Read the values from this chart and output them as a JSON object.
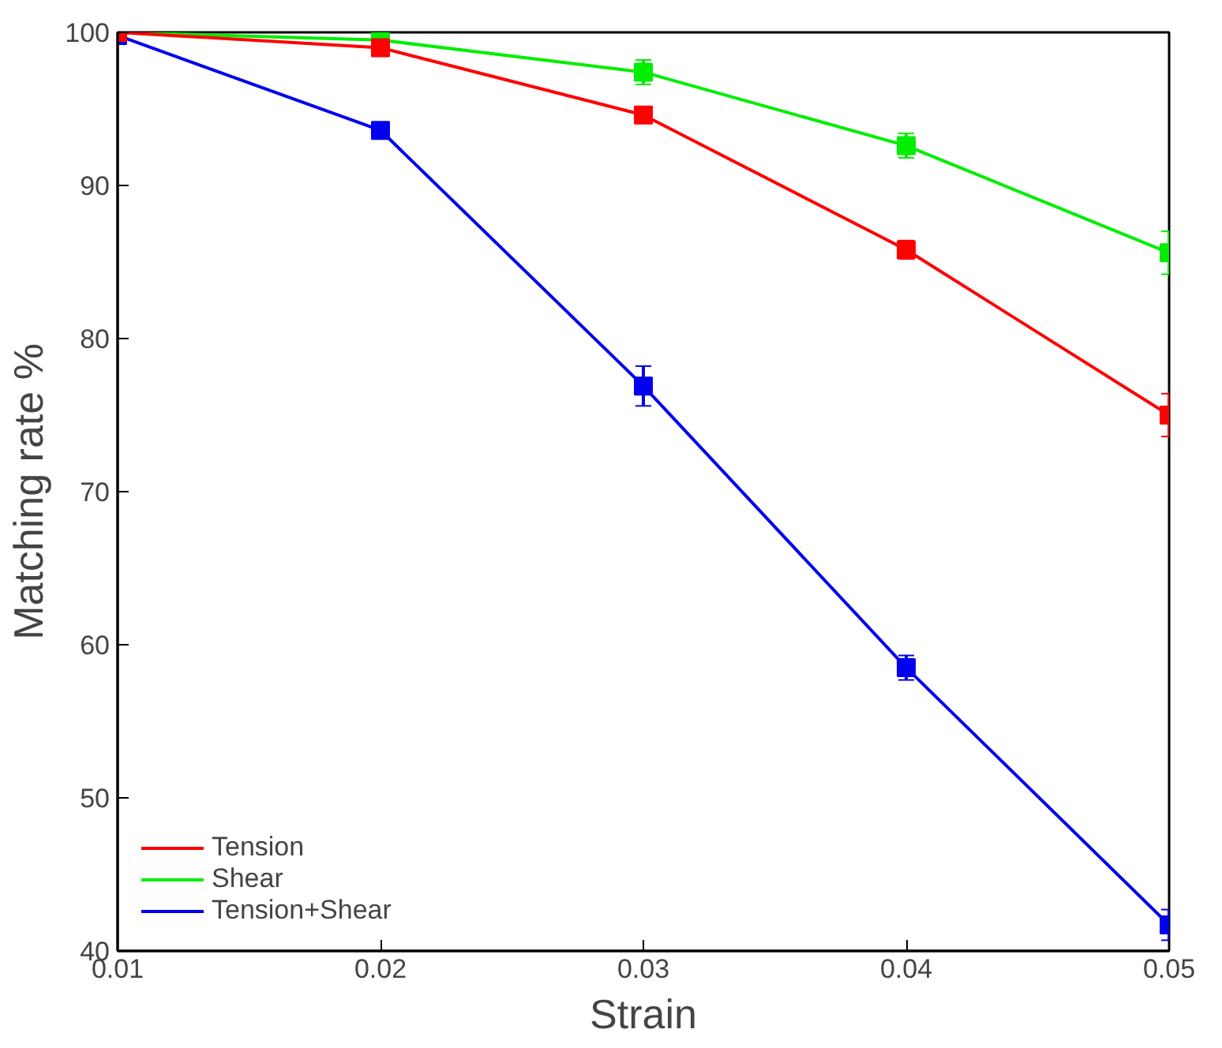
{
  "chart_data": {
    "type": "line",
    "xlabel": "Strain",
    "ylabel": "Matching rate %",
    "x": [
      0.01,
      0.02,
      0.03,
      0.04,
      0.05
    ],
    "series": [
      {
        "name": "Tension",
        "color": "#ff0000",
        "values": [
          100,
          99.0,
          94.6,
          85.8,
          75.0
        ],
        "errors": [
          null,
          0.4,
          0.5,
          0.6,
          1.4
        ]
      },
      {
        "name": "Shear",
        "color": "#00ee00",
        "values": [
          100,
          99.5,
          97.4,
          92.6,
          85.6
        ],
        "errors": [
          null,
          0.3,
          0.8,
          0.8,
          1.4
        ]
      },
      {
        "name": "Tension+Shear",
        "color": "#0000ee",
        "values": [
          99.8,
          93.6,
          76.9,
          58.5,
          41.7
        ],
        "errors": [
          null,
          0.3,
          1.3,
          0.8,
          1.0
        ]
      }
    ],
    "xlim": [
      0.01,
      0.05
    ],
    "xticks": [
      0.01,
      0.02,
      0.03,
      0.04,
      0.05
    ],
    "ylim": [
      40,
      100
    ],
    "yticks": [
      40,
      50,
      60,
      70,
      80,
      90,
      100
    ],
    "grid": false,
    "legend": "bottom left",
    "marker": "square",
    "line_style": "solid"
  }
}
